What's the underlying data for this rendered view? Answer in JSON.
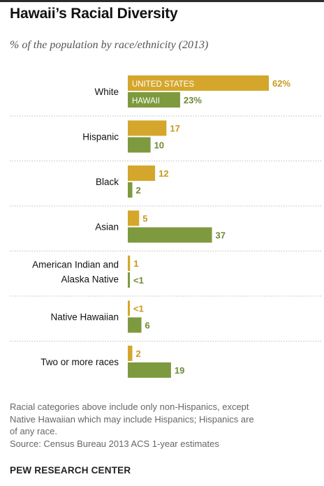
{
  "title": "Hawaii’s Racial Diversity",
  "subtitle": "% of the population by race/ethnicity (2013)",
  "colors": {
    "us": "#d4a72c",
    "hawaii": "#7e9a3f",
    "us_text": "#c9991e",
    "hawaii_text": "#6f8a35",
    "separator": "#bdbdbd"
  },
  "chart_data": {
    "type": "bar",
    "orientation": "horizontal",
    "title": "Hawaii’s Racial Diversity",
    "subtitle": "% of the population by race/ethnicity (2013)",
    "categories": [
      [
        "White"
      ],
      [
        "Hispanic"
      ],
      [
        "Black"
      ],
      [
        "Asian"
      ],
      [
        "American Indian and",
        "Alaska Native"
      ],
      [
        "Native Hawaiian"
      ],
      [
        "Two or more races"
      ]
    ],
    "series": [
      {
        "name": "UNITED STATES",
        "values": [
          62,
          17,
          12,
          5,
          1,
          0.5,
          2
        ],
        "labels": [
          "62%",
          "17",
          "12",
          "5",
          "1",
          "<1",
          "2"
        ]
      },
      {
        "name": "HAWAII",
        "values": [
          23,
          10,
          2,
          37,
          0.5,
          6,
          19
        ],
        "labels": [
          "23%",
          "10",
          "2",
          "37",
          "<1",
          "6",
          "19"
        ]
      }
    ],
    "xlim": [
      0,
      62
    ],
    "grid": false,
    "legend": "inside first bars"
  },
  "footnote": {
    "lines": [
      "Racial categories above include only non-Hispanics, except",
      "Native Hawaiian which may include Hispanics; Hispanics are",
      "of any race."
    ],
    "source": "Source: Census Bureau 2013 ACS 1-year estimates"
  },
  "brand": "PEW RESEARCH CENTER"
}
